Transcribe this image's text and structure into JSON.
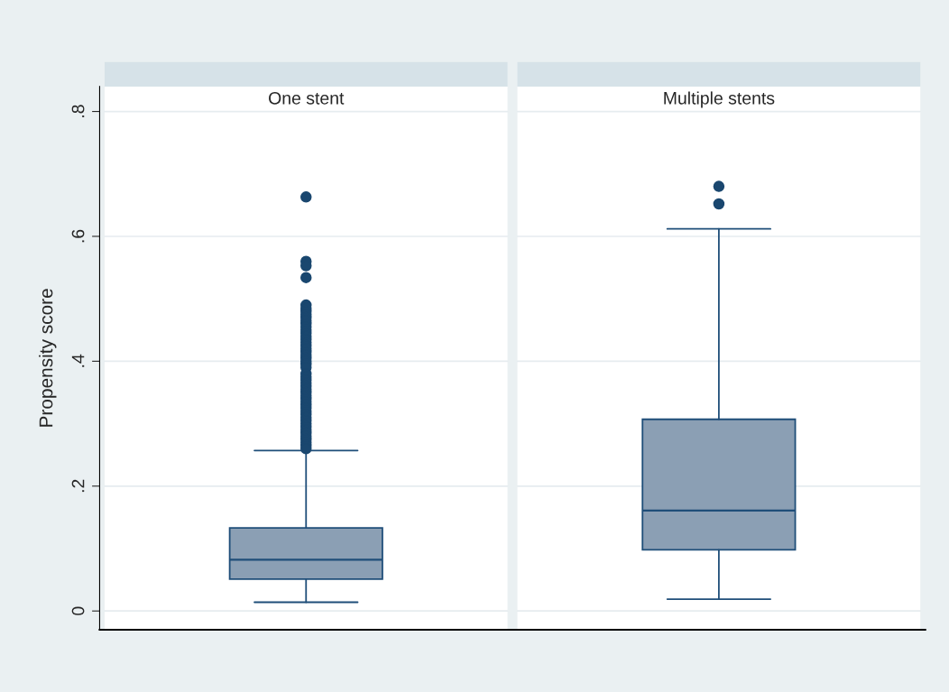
{
  "chart_data": {
    "type": "box",
    "ylabel": "Propensity score",
    "categories": [
      "One stent",
      "Multiple stents"
    ],
    "ylim": [
      -0.03,
      0.84
    ],
    "yticks": [
      {
        "value": 0,
        "label": "0"
      },
      {
        "value": 0.2,
        "label": ".2"
      },
      {
        "value": 0.4,
        "label": ".4"
      },
      {
        "value": 0.6,
        "label": ".6"
      },
      {
        "value": 0.8,
        "label": ".8"
      }
    ],
    "grid": "y",
    "series": [
      {
        "color": "#8b9fb4",
        "boxes": [
          {
            "low": 0.014,
            "q1": 0.051,
            "median": 0.082,
            "q3": 0.133,
            "high": 0.257,
            "outliers": [
              0.663,
              0.56,
              0.553,
              0.534,
              0.49,
              0.485,
              0.48,
              0.475,
              0.47,
              0.465,
              0.46,
              0.455,
              0.45,
              0.445,
              0.44,
              0.435,
              0.43,
              0.425,
              0.42,
              0.415,
              0.41,
              0.405,
              0.4,
              0.395,
              0.39,
              0.38,
              0.375,
              0.37,
              0.365,
              0.36,
              0.355,
              0.35,
              0.345,
              0.34,
              0.335,
              0.33,
              0.325,
              0.32,
              0.315,
              0.31,
              0.305,
              0.3,
              0.295,
              0.29,
              0.285,
              0.28,
              0.275,
              0.27,
              0.265,
              0.26
            ]
          },
          {
            "low": 0.019,
            "q1": 0.098,
            "median": 0.161,
            "q3": 0.307,
            "high": 0.612,
            "outliers": [
              0.68,
              0.652
            ]
          }
        ]
      }
    ]
  }
}
